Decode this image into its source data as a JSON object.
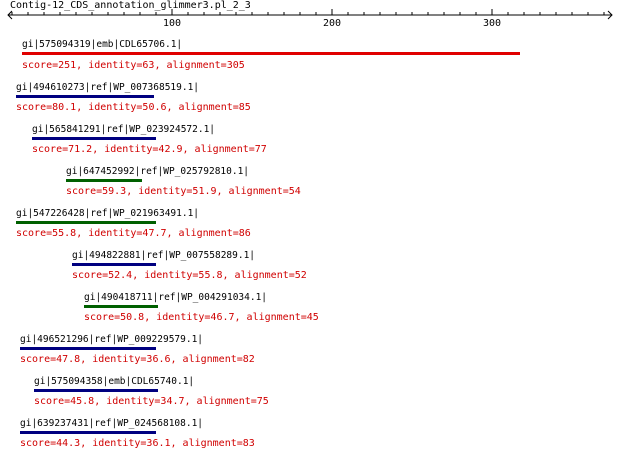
{
  "ruler": {
    "title": "Contig-12_CDS_annotation_glimmer3.pl_2_3",
    "ticks": [
      "100",
      "200",
      "300"
    ]
  },
  "colors": {
    "ruler": "#000000",
    "stats_text": "#d00000",
    "bar_red": "#e00000",
    "bar_blue": "#000080",
    "bar_green": "#006000"
  },
  "hits": [
    {
      "name": "gi|575094319|emb|CDL65706.1|",
      "stats": "score=251, identity=63, alignment=305",
      "bar_color": "#e00000"
    },
    {
      "name": "gi|494610273|ref|WP_007368519.1|",
      "stats": "score=80.1, identity=50.6, alignment=85",
      "bar_color": "#000080"
    },
    {
      "name": "gi|565841291|ref|WP_023924572.1|",
      "stats": "score=71.2, identity=42.9, alignment=77",
      "bar_color": "#000080"
    },
    {
      "name": "gi|647452992|ref|WP_025792810.1|",
      "stats": "score=59.3, identity=51.9, alignment=54",
      "bar_color": "#006000"
    },
    {
      "name": "gi|547226428|ref|WP_021963491.1|",
      "stats": "score=55.8, identity=47.7, alignment=86",
      "bar_color": "#006000"
    },
    {
      "name": "gi|494822881|ref|WP_007558289.1|",
      "stats": "score=52.4, identity=55.8, alignment=52",
      "bar_color": "#000080"
    },
    {
      "name": "gi|490418711|ref|WP_004291034.1|",
      "stats": "score=50.8, identity=46.7, alignment=45",
      "bar_color": "#006000"
    },
    {
      "name": "gi|496521296|ref|WP_009229579.1|",
      "stats": "score=47.8, identity=36.6, alignment=82",
      "bar_color": "#000080"
    },
    {
      "name": "gi|575094358|emb|CDL65740.1|",
      "stats": "score=45.8, identity=34.7, alignment=75",
      "bar_color": "#000080"
    },
    {
      "name": "gi|639237431|ref|WP_024568108.1|",
      "stats": "score=44.3, identity=36.1, alignment=83",
      "bar_color": "#000080"
    }
  ]
}
